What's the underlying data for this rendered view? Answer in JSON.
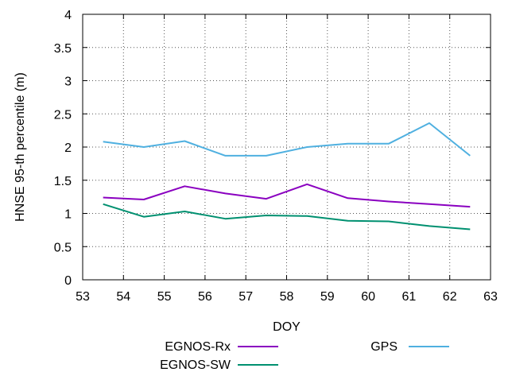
{
  "chart_data": {
    "type": "line",
    "xlabel": "DOY",
    "ylabel": "HNSE 95-th percentile (m)",
    "xlim": [
      53,
      63
    ],
    "ylim": [
      0,
      4
    ],
    "xticks": [
      "53",
      "54",
      "55",
      "56",
      "57",
      "58",
      "59",
      "60",
      "61",
      "62",
      "63"
    ],
    "yticks": [
      "0",
      "0.5",
      "1",
      "1.5",
      "2",
      "2.5",
      "3",
      "3.5",
      "4"
    ],
    "grid": true,
    "legend_position": "bottom",
    "x": [
      53.5,
      54.5,
      55.5,
      56.5,
      57.5,
      58.5,
      59.5,
      60.5,
      61.5,
      62.5
    ],
    "series": [
      {
        "name": "EGNOS-Rx",
        "color": "#8a00c0",
        "values": [
          1.24,
          1.21,
          1.41,
          1.3,
          1.22,
          1.44,
          1.23,
          1.18,
          1.14,
          1.1
        ]
      },
      {
        "name": "GPS",
        "color": "#4fb0e0",
        "values": [
          2.08,
          2.0,
          2.09,
          1.87,
          1.87,
          2.0,
          2.05,
          2.05,
          2.36,
          1.87
        ]
      },
      {
        "name": "EGNOS-SW",
        "color": "#009070",
        "values": [
          1.14,
          0.95,
          1.03,
          0.92,
          0.97,
          0.96,
          0.89,
          0.88,
          0.81,
          0.76
        ]
      }
    ]
  }
}
